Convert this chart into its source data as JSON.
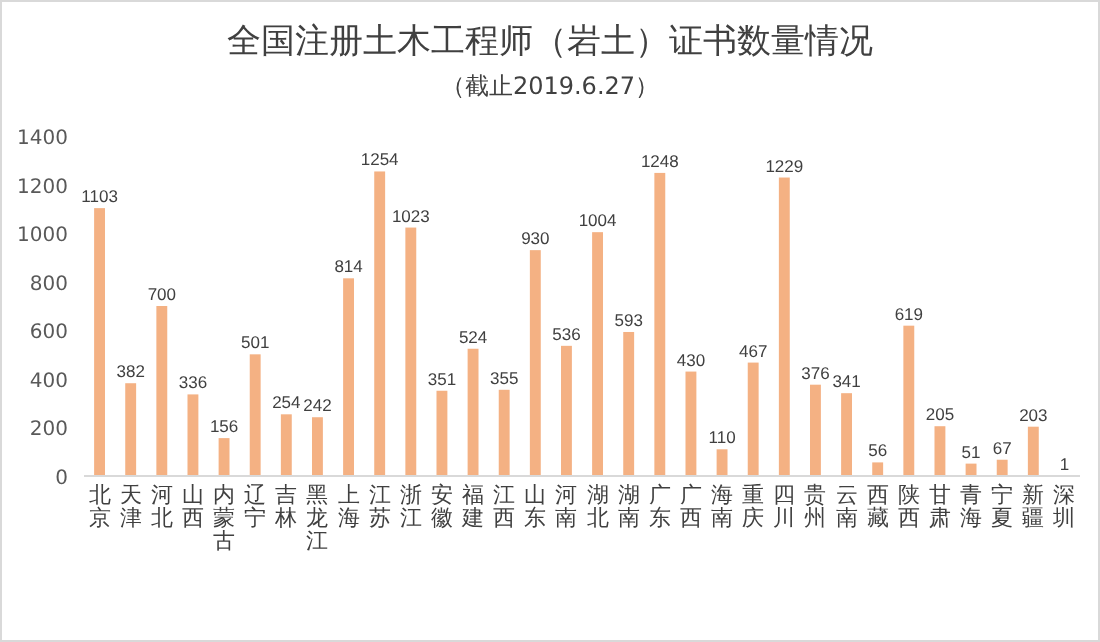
{
  "chart_data": {
    "type": "bar",
    "title": "全国注册土木工程师（岩土）证书数量情况",
    "subtitle": "（截止2019.6.27）",
    "categories": [
      "北京",
      "天津",
      "河北",
      "山西",
      "内蒙古",
      "辽宁",
      "吉林",
      "黑龙江",
      "上海",
      "江苏",
      "浙江",
      "安徽",
      "福建",
      "江西",
      "山东",
      "河南",
      "湖北",
      "湖南",
      "广东",
      "广西",
      "海南",
      "重庆",
      "四川",
      "贵州",
      "云南",
      "西藏",
      "陕西",
      "甘肃",
      "青海",
      "宁夏",
      "新疆",
      "深圳"
    ],
    "values": [
      1103,
      382,
      700,
      336,
      156,
      501,
      254,
      242,
      814,
      1254,
      1023,
      351,
      524,
      355,
      930,
      536,
      1004,
      593,
      1248,
      430,
      110,
      467,
      1229,
      376,
      341,
      56,
      619,
      205,
      51,
      67,
      203,
      1
    ],
    "color": "#f4b183",
    "ylim": [
      0,
      1400
    ],
    "yticks": [
      0,
      200,
      400,
      600,
      800,
      1000,
      1200,
      1400
    ],
    "data_labels": true
  }
}
